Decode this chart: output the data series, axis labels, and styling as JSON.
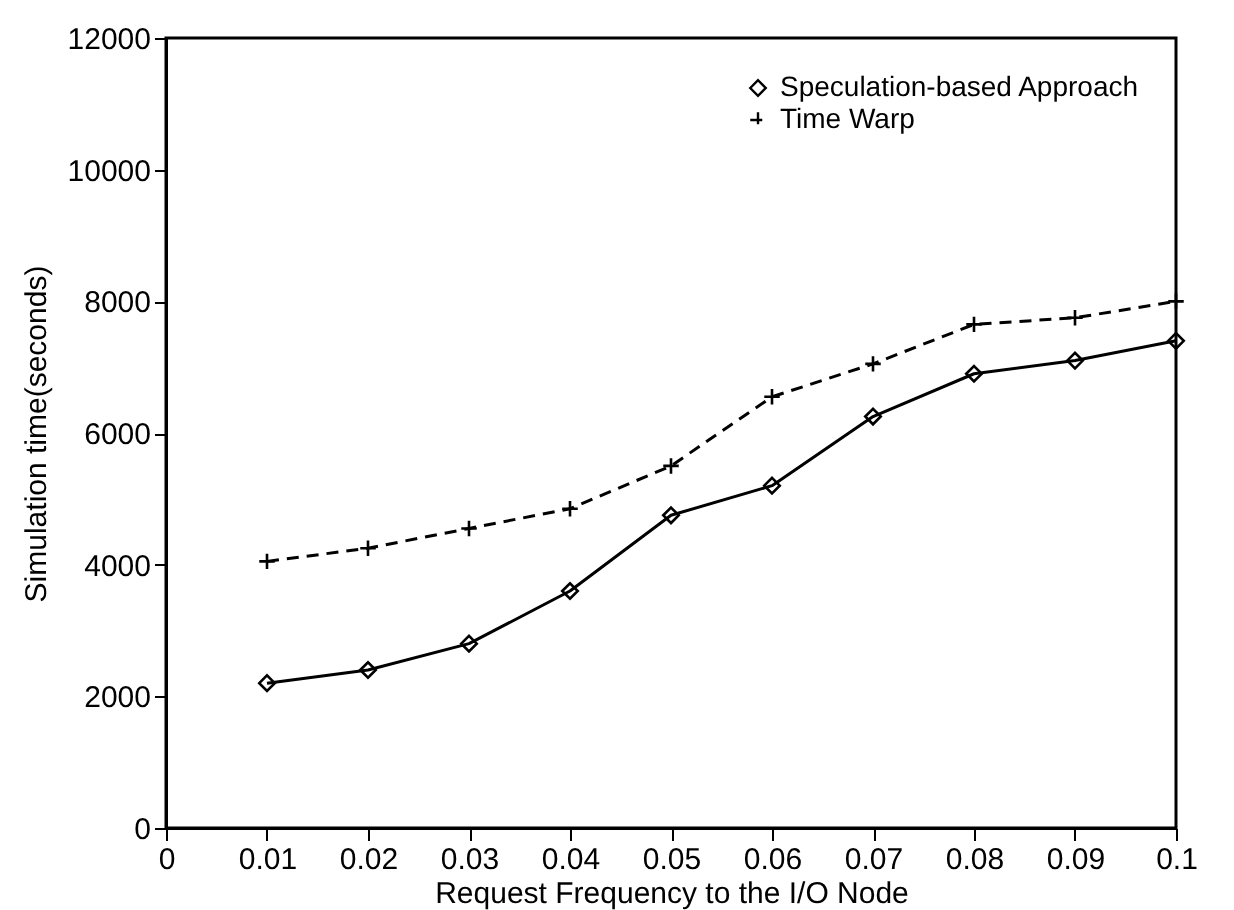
{
  "chart_data": {
    "type": "line",
    "xlabel": "Request Frequency to the I/O Node",
    "ylabel": "Simulation time(seconds)",
    "x": [
      0.01,
      0.02,
      0.03,
      0.04,
      0.05,
      0.06,
      0.07,
      0.08,
      0.09,
      0.1
    ],
    "series": [
      {
        "name": "Speculation-based Approach",
        "color": "#000000",
        "marker": "diamond",
        "line_style": "solid",
        "values": [
          2200,
          2400,
          2800,
          3600,
          4750,
          5200,
          6250,
          6900,
          7100,
          7400
        ]
      },
      {
        "name": "Time Warp",
        "color": "#000000",
        "marker": "cross",
        "line_style": "dashed",
        "values": [
          4050,
          4250,
          4550,
          4850,
          5500,
          6550,
          7050,
          7650,
          7750,
          8000
        ]
      }
    ],
    "xlim": [
      0,
      0.1
    ],
    "xticks": [
      0,
      0.01,
      0.02,
      0.03,
      0.04,
      0.05,
      0.06,
      0.07,
      0.08,
      0.09,
      0.1
    ],
    "ylim": [
      0,
      12000
    ],
    "yticks": [
      0,
      2000,
      4000,
      6000,
      8000,
      10000,
      12000
    ],
    "grid": false,
    "legend": "top right"
  }
}
